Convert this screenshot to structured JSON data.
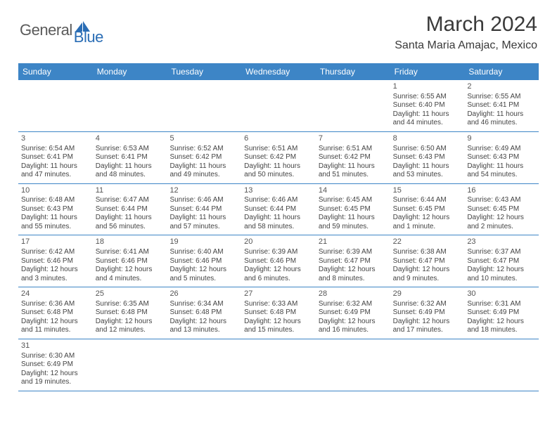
{
  "brand": {
    "word1": "General",
    "word2": "Blue"
  },
  "title": "March 2024",
  "location": "Santa Maria Amajac, Mexico",
  "colors": {
    "header_bg": "#3d85c6",
    "header_text": "#ffffff",
    "brand_gray": "#5a5a5a",
    "brand_blue": "#2a6db5",
    "text": "#444444",
    "rule": "#3d85c6"
  },
  "day_labels": [
    "Sunday",
    "Monday",
    "Tuesday",
    "Wednesday",
    "Thursday",
    "Friday",
    "Saturday"
  ],
  "weeks": [
    [
      {
        "blank": true
      },
      {
        "blank": true
      },
      {
        "blank": true
      },
      {
        "blank": true
      },
      {
        "blank": true
      },
      {
        "n": "1",
        "sr": "Sunrise: 6:55 AM",
        "ss": "Sunset: 6:40 PM",
        "dl1": "Daylight: 11 hours",
        "dl2": "and 44 minutes."
      },
      {
        "n": "2",
        "sr": "Sunrise: 6:55 AM",
        "ss": "Sunset: 6:41 PM",
        "dl1": "Daylight: 11 hours",
        "dl2": "and 46 minutes."
      }
    ],
    [
      {
        "n": "3",
        "sr": "Sunrise: 6:54 AM",
        "ss": "Sunset: 6:41 PM",
        "dl1": "Daylight: 11 hours",
        "dl2": "and 47 minutes."
      },
      {
        "n": "4",
        "sr": "Sunrise: 6:53 AM",
        "ss": "Sunset: 6:41 PM",
        "dl1": "Daylight: 11 hours",
        "dl2": "and 48 minutes."
      },
      {
        "n": "5",
        "sr": "Sunrise: 6:52 AM",
        "ss": "Sunset: 6:42 PM",
        "dl1": "Daylight: 11 hours",
        "dl2": "and 49 minutes."
      },
      {
        "n": "6",
        "sr": "Sunrise: 6:51 AM",
        "ss": "Sunset: 6:42 PM",
        "dl1": "Daylight: 11 hours",
        "dl2": "and 50 minutes."
      },
      {
        "n": "7",
        "sr": "Sunrise: 6:51 AM",
        "ss": "Sunset: 6:42 PM",
        "dl1": "Daylight: 11 hours",
        "dl2": "and 51 minutes."
      },
      {
        "n": "8",
        "sr": "Sunrise: 6:50 AM",
        "ss": "Sunset: 6:43 PM",
        "dl1": "Daylight: 11 hours",
        "dl2": "and 53 minutes."
      },
      {
        "n": "9",
        "sr": "Sunrise: 6:49 AM",
        "ss": "Sunset: 6:43 PM",
        "dl1": "Daylight: 11 hours",
        "dl2": "and 54 minutes."
      }
    ],
    [
      {
        "n": "10",
        "sr": "Sunrise: 6:48 AM",
        "ss": "Sunset: 6:43 PM",
        "dl1": "Daylight: 11 hours",
        "dl2": "and 55 minutes."
      },
      {
        "n": "11",
        "sr": "Sunrise: 6:47 AM",
        "ss": "Sunset: 6:44 PM",
        "dl1": "Daylight: 11 hours",
        "dl2": "and 56 minutes."
      },
      {
        "n": "12",
        "sr": "Sunrise: 6:46 AM",
        "ss": "Sunset: 6:44 PM",
        "dl1": "Daylight: 11 hours",
        "dl2": "and 57 minutes."
      },
      {
        "n": "13",
        "sr": "Sunrise: 6:46 AM",
        "ss": "Sunset: 6:44 PM",
        "dl1": "Daylight: 11 hours",
        "dl2": "and 58 minutes."
      },
      {
        "n": "14",
        "sr": "Sunrise: 6:45 AM",
        "ss": "Sunset: 6:45 PM",
        "dl1": "Daylight: 11 hours",
        "dl2": "and 59 minutes."
      },
      {
        "n": "15",
        "sr": "Sunrise: 6:44 AM",
        "ss": "Sunset: 6:45 PM",
        "dl1": "Daylight: 12 hours",
        "dl2": "and 1 minute."
      },
      {
        "n": "16",
        "sr": "Sunrise: 6:43 AM",
        "ss": "Sunset: 6:45 PM",
        "dl1": "Daylight: 12 hours",
        "dl2": "and 2 minutes."
      }
    ],
    [
      {
        "n": "17",
        "sr": "Sunrise: 6:42 AM",
        "ss": "Sunset: 6:46 PM",
        "dl1": "Daylight: 12 hours",
        "dl2": "and 3 minutes."
      },
      {
        "n": "18",
        "sr": "Sunrise: 6:41 AM",
        "ss": "Sunset: 6:46 PM",
        "dl1": "Daylight: 12 hours",
        "dl2": "and 4 minutes."
      },
      {
        "n": "19",
        "sr": "Sunrise: 6:40 AM",
        "ss": "Sunset: 6:46 PM",
        "dl1": "Daylight: 12 hours",
        "dl2": "and 5 minutes."
      },
      {
        "n": "20",
        "sr": "Sunrise: 6:39 AM",
        "ss": "Sunset: 6:46 PM",
        "dl1": "Daylight: 12 hours",
        "dl2": "and 6 minutes."
      },
      {
        "n": "21",
        "sr": "Sunrise: 6:39 AM",
        "ss": "Sunset: 6:47 PM",
        "dl1": "Daylight: 12 hours",
        "dl2": "and 8 minutes."
      },
      {
        "n": "22",
        "sr": "Sunrise: 6:38 AM",
        "ss": "Sunset: 6:47 PM",
        "dl1": "Daylight: 12 hours",
        "dl2": "and 9 minutes."
      },
      {
        "n": "23",
        "sr": "Sunrise: 6:37 AM",
        "ss": "Sunset: 6:47 PM",
        "dl1": "Daylight: 12 hours",
        "dl2": "and 10 minutes."
      }
    ],
    [
      {
        "n": "24",
        "sr": "Sunrise: 6:36 AM",
        "ss": "Sunset: 6:48 PM",
        "dl1": "Daylight: 12 hours",
        "dl2": "and 11 minutes."
      },
      {
        "n": "25",
        "sr": "Sunrise: 6:35 AM",
        "ss": "Sunset: 6:48 PM",
        "dl1": "Daylight: 12 hours",
        "dl2": "and 12 minutes."
      },
      {
        "n": "26",
        "sr": "Sunrise: 6:34 AM",
        "ss": "Sunset: 6:48 PM",
        "dl1": "Daylight: 12 hours",
        "dl2": "and 13 minutes."
      },
      {
        "n": "27",
        "sr": "Sunrise: 6:33 AM",
        "ss": "Sunset: 6:48 PM",
        "dl1": "Daylight: 12 hours",
        "dl2": "and 15 minutes."
      },
      {
        "n": "28",
        "sr": "Sunrise: 6:32 AM",
        "ss": "Sunset: 6:49 PM",
        "dl1": "Daylight: 12 hours",
        "dl2": "and 16 minutes."
      },
      {
        "n": "29",
        "sr": "Sunrise: 6:32 AM",
        "ss": "Sunset: 6:49 PM",
        "dl1": "Daylight: 12 hours",
        "dl2": "and 17 minutes."
      },
      {
        "n": "30",
        "sr": "Sunrise: 6:31 AM",
        "ss": "Sunset: 6:49 PM",
        "dl1": "Daylight: 12 hours",
        "dl2": "and 18 minutes."
      }
    ],
    [
      {
        "n": "31",
        "sr": "Sunrise: 6:30 AM",
        "ss": "Sunset: 6:49 PM",
        "dl1": "Daylight: 12 hours",
        "dl2": "and 19 minutes."
      },
      {
        "blank": true
      },
      {
        "blank": true
      },
      {
        "blank": true
      },
      {
        "blank": true
      },
      {
        "blank": true
      },
      {
        "blank": true
      }
    ]
  ]
}
